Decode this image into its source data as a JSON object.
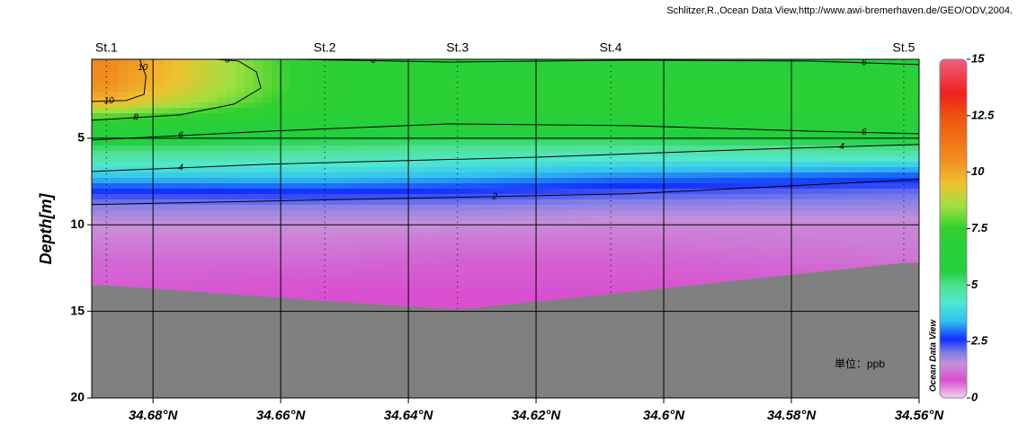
{
  "credit": "Schlitzer,R.,Ocean Data View,http://www.awi-bremerhaven.de/GEO/ODV,2004.",
  "chart_data": {
    "type": "section",
    "y_label": "Depth[m]",
    "xlim": [
      34.6896,
      34.56
    ],
    "ylim": [
      0.44,
      20
    ],
    "y_inverted": true,
    "xticks": [
      {
        "value": 34.68,
        "label": "34.68°N"
      },
      {
        "value": 34.66,
        "label": "34.66°N"
      },
      {
        "value": 34.64,
        "label": "34.64°N"
      },
      {
        "value": 34.62,
        "label": "34.62°N"
      },
      {
        "value": 34.6,
        "label": "34.6°N"
      },
      {
        "value": 34.58,
        "label": "34.58°N"
      },
      {
        "value": 34.56,
        "label": "34.56°N"
      }
    ],
    "yticks": [
      5,
      10,
      15,
      20
    ],
    "grid": true,
    "stations": [
      {
        "name": "St.1",
        "x": 34.6873,
        "bottom_depth": 13.5
      },
      {
        "name": "St.2",
        "x": 34.6531,
        "bottom_depth": 14.4
      },
      {
        "name": "St.3",
        "x": 34.6323,
        "bottom_depth": 14.9
      },
      {
        "name": "St.4",
        "x": 34.6083,
        "bottom_depth": 14.0
      },
      {
        "name": "St.5",
        "x": 34.5624,
        "bottom_depth": 12.2
      }
    ],
    "depths": [
      0.5,
      1,
      2,
      3,
      4,
      5,
      6,
      7,
      8,
      9,
      10,
      11,
      12,
      13,
      14,
      15
    ],
    "values": [
      [
        10.8,
        10.7,
        10.5,
        9.6,
        7.2,
        5.9,
        4.8,
        3.8,
        2.6,
        1.9,
        1.5,
        1.3,
        1.1,
        1.0,
        0.9,
        0.9
      ],
      [
        6.8,
        6.9,
        7.0,
        6.9,
        6.4,
        5.6,
        4.7,
        3.8,
        2.7,
        1.9,
        1.5,
        1.3,
        1.1,
        0.9,
        0.8,
        0.8
      ],
      [
        6.4,
        6.7,
        6.9,
        6.9,
        6.3,
        5.5,
        4.5,
        3.6,
        2.6,
        1.9,
        1.5,
        1.2,
        1.0,
        0.9,
        0.8,
        0.8
      ],
      [
        6.3,
        6.6,
        6.9,
        6.9,
        6.3,
        5.5,
        4.4,
        3.3,
        2.4,
        1.8,
        1.4,
        1.2,
        1.0,
        0.9,
        0.8,
        0.8
      ],
      [
        6.0,
        6.5,
        6.8,
        6.9,
        6.5,
        5.8,
        4.6,
        3.0,
        2.2,
        1.8,
        1.4,
        1.3,
        1.2,
        1.0,
        0.9,
        0.9
      ]
    ],
    "contours": [
      {
        "level": 10,
        "x": [
          34.6896,
          34.6842,
          34.6814,
          34.6811,
          34.6821
        ],
        "depth": [
          2.88,
          2.82,
          2.46,
          1.42,
          0.44
        ]
      },
      {
        "level": 8,
        "x": [
          34.6896,
          34.6758,
          34.6673,
          34.6631,
          34.6638,
          34.6666,
          34.6701
        ],
        "depth": [
          3.96,
          3.65,
          3.03,
          2.1,
          1.17,
          0.54,
          0.44
        ]
      },
      {
        "level": 6,
        "x": [
          34.6575,
          34.6335,
          34.6053,
          34.5772,
          34.56
        ],
        "depth": [
          0.44,
          0.6,
          0.49,
          0.54,
          0.75
        ]
      },
      {
        "level": 6,
        "x": [
          34.6896,
          34.6617,
          34.6335,
          34.6053,
          34.5772,
          34.56
        ],
        "depth": [
          5.1,
          4.59,
          4.17,
          4.27,
          4.59,
          4.74
        ]
      },
      {
        "level": 4,
        "x": [
          34.6896,
          34.6617,
          34.6194,
          34.5842,
          34.56
        ],
        "depth": [
          6.92,
          6.5,
          6.09,
          5.62,
          5.36
        ]
      },
      {
        "level": 2,
        "x": [
          34.6896,
          34.6476,
          34.6053,
          34.56
        ],
        "depth": [
          8.83,
          8.52,
          8.21,
          7.38
        ]
      }
    ],
    "bottom_color": "#808080",
    "unit_note": "単位：ppb",
    "colorbar": {
      "watermark": "Ocean Data View",
      "lim": [
        0,
        15
      ],
      "ticks": [
        0,
        2.5,
        5,
        7.5,
        10,
        12.5,
        15
      ],
      "colormap": [
        [
          0,
          "#f5d0f0"
        ],
        [
          0.8,
          "#d850d0"
        ],
        [
          1.5,
          "#c890d8"
        ],
        [
          2.0,
          "#8080e8"
        ],
        [
          2.6,
          "#1030ff"
        ],
        [
          3.4,
          "#30c0f0"
        ],
        [
          4.2,
          "#50e8d0"
        ],
        [
          5.0,
          "#50e090"
        ],
        [
          5.6,
          "#20d040"
        ],
        [
          7.5,
          "#30d030"
        ],
        [
          8.5,
          "#a0e040"
        ],
        [
          9.5,
          "#f0c030"
        ],
        [
          10.5,
          "#f09020"
        ],
        [
          12.5,
          "#f05010"
        ],
        [
          13.5,
          "#f02020"
        ],
        [
          15,
          "#f06080"
        ]
      ]
    }
  }
}
